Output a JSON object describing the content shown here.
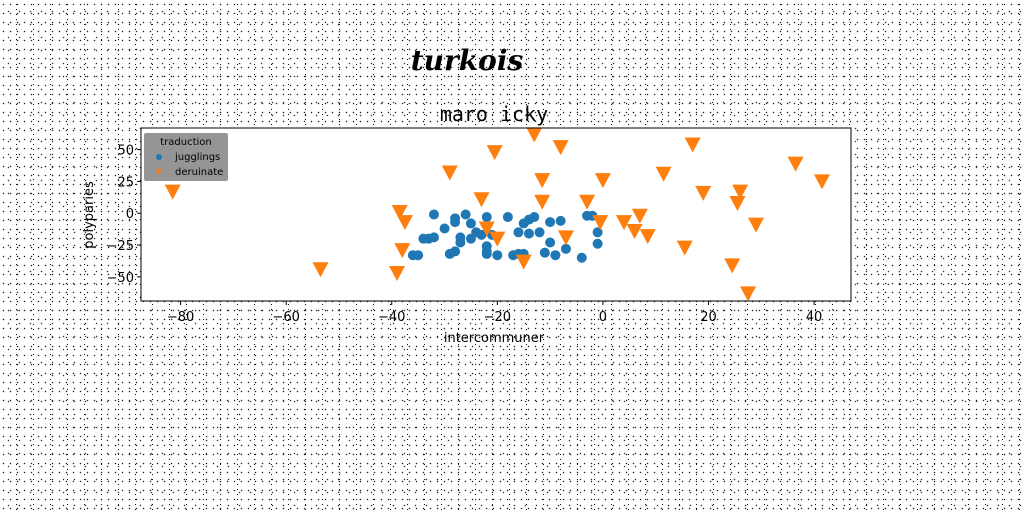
{
  "chart_data": {
    "type": "scatter",
    "suptitle": "turkois",
    "title": "maro icky",
    "xlabel": "intercommuner",
    "ylabel": "polyparies",
    "xlim": [
      -87.5,
      47
    ],
    "ylim": [
      -69,
      67
    ],
    "xticks": [
      -80,
      -60,
      -40,
      -20,
      0,
      20,
      40
    ],
    "yticks": [
      -50,
      -25,
      0,
      25,
      50
    ],
    "grid": false,
    "legend": {
      "title": "traduction",
      "placement": "top-left"
    },
    "series": [
      {
        "name": "jugglings",
        "marker": "circle",
        "color": "#1f77b4",
        "points": [
          [
            -32,
            -1
          ],
          [
            -33,
            -20
          ],
          [
            -35,
            -33
          ],
          [
            -36,
            -33
          ],
          [
            -34,
            -20
          ],
          [
            -32,
            -19
          ],
          [
            -30,
            -12
          ],
          [
            -29,
            -32
          ],
          [
            -28,
            -7
          ],
          [
            -28,
            -4
          ],
          [
            -28,
            -30
          ],
          [
            -27,
            -19
          ],
          [
            -27,
            -23
          ],
          [
            -26,
            -1
          ],
          [
            -25,
            -8
          ],
          [
            -25,
            -20
          ],
          [
            -24,
            -15
          ],
          [
            -23,
            -17
          ],
          [
            -22,
            -26
          ],
          [
            -22,
            -30
          ],
          [
            -22,
            -32
          ],
          [
            -22,
            -3
          ],
          [
            -21,
            -17
          ],
          [
            -20,
            -33
          ],
          [
            -18,
            -3
          ],
          [
            -17,
            -33
          ],
          [
            -16,
            -15
          ],
          [
            -16,
            -32
          ],
          [
            -15,
            -8
          ],
          [
            -15,
            -32
          ],
          [
            -14,
            -5
          ],
          [
            -14,
            -16
          ],
          [
            -13,
            -3
          ],
          [
            -12,
            -15
          ],
          [
            -11,
            -31
          ],
          [
            -10,
            -23
          ],
          [
            -10,
            -7
          ],
          [
            -9,
            -33
          ],
          [
            -8,
            -6
          ],
          [
            -7,
            -28
          ],
          [
            -4,
            -35
          ],
          [
            -3,
            -2
          ],
          [
            -2,
            -2
          ],
          [
            -1,
            -15
          ],
          [
            -1,
            -24
          ]
        ]
      },
      {
        "name": "deruinate",
        "marker": "triangle-down",
        "color": "#ff7f0e",
        "points": [
          [
            -81.5,
            17
          ],
          [
            -53.5,
            -44
          ],
          [
            -38.5,
            1
          ],
          [
            -37.5,
            -7
          ],
          [
            -38,
            -29
          ],
          [
            -39,
            -47
          ],
          [
            -29,
            32
          ],
          [
            -23,
            11
          ],
          [
            -20.5,
            48
          ],
          [
            -20,
            -20
          ],
          [
            -22,
            -12
          ],
          [
            -15,
            -38
          ],
          [
            -13,
            62
          ],
          [
            -11.5,
            26
          ],
          [
            -11.5,
            9
          ],
          [
            -8,
            52
          ],
          [
            -7,
            -19
          ],
          [
            -3,
            9
          ],
          [
            -0.5,
            -7
          ],
          [
            0,
            26
          ],
          [
            4,
            -7
          ],
          [
            6,
            -14
          ],
          [
            7,
            -2
          ],
          [
            8.5,
            -18
          ],
          [
            11.5,
            31
          ],
          [
            15.5,
            -27
          ],
          [
            17,
            54
          ],
          [
            19,
            16
          ],
          [
            24.5,
            -41
          ],
          [
            25.5,
            8
          ],
          [
            26,
            17
          ],
          [
            27.5,
            -63
          ],
          [
            29,
            -9
          ],
          [
            36.5,
            39
          ],
          [
            41.5,
            25
          ]
        ]
      }
    ]
  }
}
